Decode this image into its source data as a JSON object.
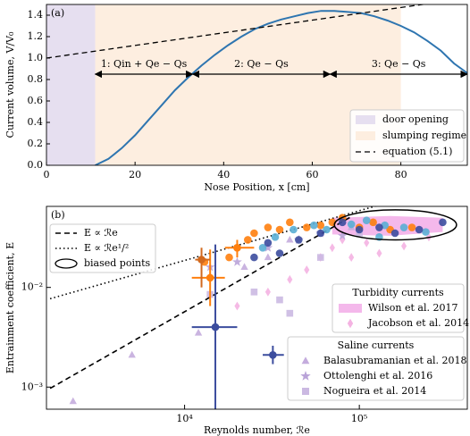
{
  "chart_data": [
    {
      "type": "line",
      "panel_label": "(a)",
      "x_label": "Nose Position, x [cm]",
      "y_label": "Current volume, V/V₀",
      "xlim": [
        0,
        95
      ],
      "ylim": [
        0,
        1.5
      ],
      "xticks": [
        0,
        20,
        40,
        60,
        80
      ],
      "yticks": [
        {
          "value": 0,
          "label": "0.0"
        },
        0.2,
        0.4,
        0.6,
        0.8,
        {
          "value": 1,
          "label": "1.0"
        },
        1.2,
        1.4
      ],
      "legend": "lower right",
      "spans": [
        {
          "name": "door opening",
          "from": 0,
          "to": 11,
          "color": "#e6dff0"
        },
        {
          "name": "slumping regime",
          "from": 11,
          "to": 80,
          "color": "#fdeee0"
        }
      ],
      "series": [
        {
          "color": "#2e75b0",
          "style": "solid",
          "x": [
            11,
            14,
            17,
            20,
            23,
            26,
            29,
            32,
            35,
            38,
            41,
            44,
            47,
            50,
            53,
            56,
            59,
            62,
            65,
            68,
            71,
            74,
            77,
            80,
            83,
            86,
            89,
            92,
            95
          ],
          "values": [
            0,
            0.06,
            0.16,
            0.28,
            0.42,
            0.56,
            0.7,
            0.82,
            0.93,
            1.03,
            1.12,
            1.2,
            1.27,
            1.32,
            1.36,
            1.39,
            1.42,
            1.44,
            1.44,
            1.43,
            1.42,
            1.39,
            1.35,
            1.3,
            1.24,
            1.16,
            1.07,
            0.95,
            0.86
          ]
        },
        {
          "name": "equation (5.1)",
          "color": "#000000",
          "style": "dashed",
          "x": [
            0,
            95
          ],
          "values": [
            1.0,
            1.56
          ]
        }
      ],
      "annotations": [
        {
          "text": "1: Qin + Qe − Qs",
          "from": 11,
          "to": 33,
          "y": 0.85
        },
        {
          "text": "2: Qe − Qs",
          "from": 33,
          "to": 64,
          "y": 0.85
        },
        {
          "text": "3: Qe − Qs",
          "from": 64,
          "to": 95,
          "y": 0.85
        }
      ]
    },
    {
      "type": "scatter",
      "panel_label": "(b)",
      "x_label": "Reynolds number, ℛe",
      "y_label": "Entrainment coefficient, E",
      "xscale": "log",
      "yscale": "log",
      "xlim": [
        1620,
        415000
      ],
      "ylim": [
        0.0006,
        0.065
      ],
      "xticks": [
        {
          "value": 10000,
          "label": "10⁴"
        },
        {
          "value": 100000,
          "label": "10⁵"
        }
      ],
      "yticks": [
        {
          "value": 0.001,
          "label": "10⁻³"
        },
        {
          "value": 0.01,
          "label": "10⁻²"
        }
      ],
      "legend": "upper left",
      "series": [
        {
          "name": "E ∝ ℛe",
          "style": "dashed",
          "color": "#000000",
          "x": [
            1700,
            90000
          ],
          "values": [
            0.00097,
            0.0513
          ]
        },
        {
          "name": "E ∝ ℛe¹/²",
          "style": "dotted",
          "color": "#000000",
          "x": [
            1700,
            150000
          ],
          "values": [
            0.0077,
            0.072
          ]
        },
        {
          "marker": "circle",
          "color": "#ff7f0e",
          "x": [
            13000,
            18000,
            20000,
            23000,
            25000,
            30000,
            35000,
            40000,
            50000,
            60000,
            70000,
            80000,
            100000,
            120000,
            150000,
            200000
          ],
          "values": [
            0.018,
            0.02,
            0.025,
            0.03,
            0.035,
            0.04,
            0.038,
            0.045,
            0.04,
            0.042,
            0.045,
            0.05,
            0.04,
            0.045,
            0.038,
            0.04
          ]
        },
        {
          "marker": "circle",
          "color": "#5aaed4",
          "x": [
            28000,
            33000,
            42000,
            55000,
            65000,
            90000,
            110000,
            140000,
            180000,
            240000,
            130000
          ],
          "values": [
            0.025,
            0.032,
            0.038,
            0.042,
            0.038,
            0.043,
            0.047,
            0.042,
            0.04,
            0.036,
            0.032
          ]
        },
        {
          "marker": "circle",
          "color": "#3c4d9e",
          "x": [
            25000,
            30000,
            35000,
            45000,
            60000,
            80000,
            100000,
            130000,
            160000,
            220000,
            300000
          ],
          "values": [
            0.02,
            0.028,
            0.022,
            0.03,
            0.035,
            0.045,
            0.038,
            0.04,
            0.035,
            0.038,
            0.045
          ]
        }
      ],
      "errorbars": [
        {
          "color": "#ff7f0e",
          "x": 14000,
          "y": 0.0125,
          "xlo": 11000,
          "xhi": 17000,
          "ylo": 0.0065,
          "yhi": 0.024
        },
        {
          "color": "#d2691e",
          "x": 12500,
          "y": 0.019,
          "xlo": 11500,
          "xhi": 14000,
          "ylo": 0.01,
          "yhi": 0.025
        },
        {
          "color": "#ff7f0e",
          "x": 20000,
          "y": 0.025,
          "xlo": 17000,
          "xhi": 25000,
          "ylo": 0.02,
          "yhi": 0.03
        },
        {
          "color": "#3c4d9e",
          "x": 15000,
          "y": 0.004,
          "xlo": 11000,
          "xhi": 20000,
          "ylo": 0.0005,
          "yhi": 0.027
        },
        {
          "color": "#3c4d9e",
          "x": 32000,
          "y": 0.0021,
          "xlo": 28000,
          "xhi": 37000,
          "ylo": 0.0017,
          "yhi": 0.0026
        }
      ],
      "ellipse": {
        "name": "biased points",
        "x": [
          72000,
          360000
        ],
        "y": [
          0.03,
          0.06
        ]
      },
      "groups": [
        {
          "title": "Turbidity currents",
          "series": [
            {
              "name": "Wilson et al. 2017",
              "marker": "band",
              "color": "#f0a0e4",
              "x": [
                70000,
                150000,
                300000
              ],
              "upper": [
                0.05,
                0.052,
                0.05
              ],
              "lower": [
                0.034,
                0.033,
                0.036
              ]
            },
            {
              "name": "Jacobson et al. 2014",
              "marker": "diamond",
              "color": "#f4b3e2",
              "x": [
                20000,
                30000,
                40000,
                50000,
                60000,
                70000,
                90000,
                110000,
                130000,
                180000,
                250000,
                80000
              ],
              "values": [
                0.0065,
                0.009,
                0.012,
                0.015,
                0.02,
                0.025,
                0.02,
                0.028,
                0.022,
                0.026,
                0.032,
                0.03
              ]
            }
          ]
        },
        {
          "title": "Saline currents",
          "series": [
            {
              "name": "Balasubramanian et al. 2018",
              "marker": "triangle",
              "color": "#c4acdd",
              "x": [
                2300,
                5000,
                12000,
                14000,
                22000,
                30000,
                40000,
                60000,
                90000,
                120000
              ],
              "values": [
                0.00072,
                0.0021,
                0.0035,
                0.013,
                0.016,
                0.02,
                0.03,
                0.035,
                0.04,
                0.045
              ]
            },
            {
              "name": "Ottolenghi et al. 2016",
              "marker": "star",
              "color": "#b9a3d8",
              "x": [
                14000,
                20000,
                30000,
                45000,
                60000,
                80000
              ],
              "values": [
                0.016,
                0.018,
                0.025,
                0.03,
                0.035,
                0.033
              ]
            },
            {
              "name": "Nogueira et al. 2014",
              "marker": "square",
              "color": "#cbb9e2",
              "x": [
                14000,
                25000,
                35000,
                40000,
                60000,
                100000
              ],
              "values": [
                0.0085,
                0.009,
                0.0075,
                0.0055,
                0.02,
                0.035
              ]
            }
          ]
        }
      ]
    }
  ]
}
